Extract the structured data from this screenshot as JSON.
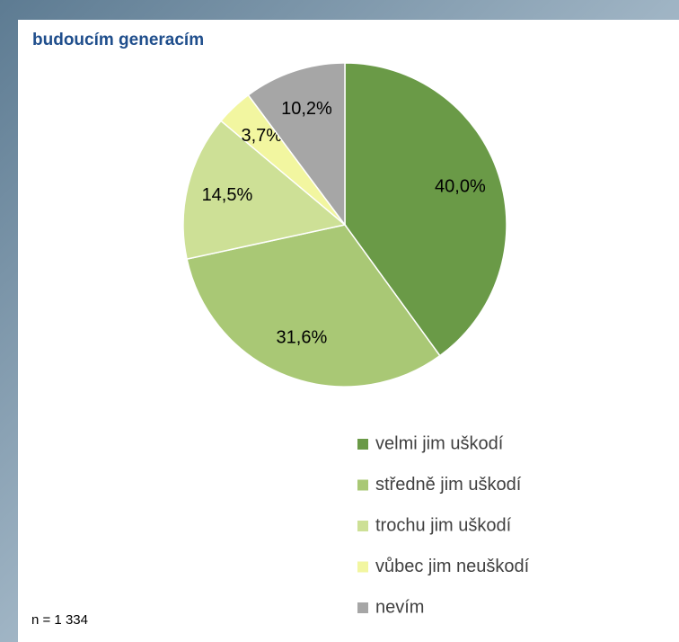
{
  "chart_data": {
    "type": "pie",
    "title": "budoucím generacím",
    "categories": [
      "velmi jim uškodí",
      "středně jim uškodí",
      "trochu jim uškodí",
      "vůbec jim neuškodí",
      "nevím"
    ],
    "values": [
      40.0,
      31.6,
      14.5,
      3.7,
      10.2
    ],
    "value_labels": [
      "40,0%",
      "31,6%",
      "14,5%",
      "3,7%",
      "10,2%"
    ],
    "colors": [
      "#6a9a47",
      "#a9c875",
      "#cde096",
      "#f2f6a0",
      "#a6a6a6"
    ],
    "legend": "bottom-right",
    "note": "n = 1 334"
  }
}
